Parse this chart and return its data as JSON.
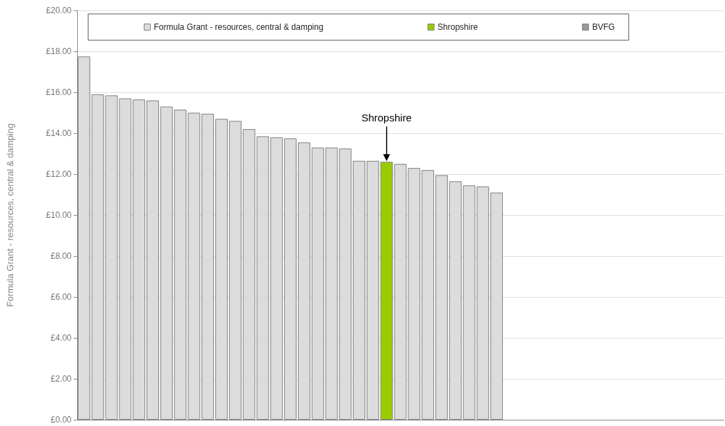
{
  "chart_data": {
    "type": "bar",
    "ylabel": "Formula Grant - resources, central & damping",
    "categories": [
      null,
      null,
      null,
      null,
      null,
      null,
      null,
      null,
      null,
      null,
      null,
      null,
      null,
      null,
      null,
      null,
      null,
      null,
      null,
      null,
      null,
      null,
      null,
      null,
      null,
      null,
      null,
      null,
      null,
      null,
      null,
      null,
      null,
      null,
      null,
      null,
      null,
      null,
      null,
      null,
      null,
      null,
      null,
      null,
      null,
      null,
      null
    ],
    "series": [
      {
        "name": "Formula Grant - resources, central & damping",
        "color": "#dcdcdc",
        "values": [
          17.75,
          15.9,
          15.85,
          15.7,
          15.65,
          15.6,
          15.3,
          15.15,
          15.0,
          14.95,
          14.7,
          14.6,
          14.2,
          13.85,
          13.8,
          13.75,
          13.55,
          13.3,
          13.3,
          13.25,
          12.65,
          12.65,
          null,
          12.5,
          12.3,
          12.2,
          11.95,
          11.65,
          11.45,
          11.4,
          11.1,
          null,
          null,
          null,
          null,
          null,
          null,
          null,
          null,
          null,
          null,
          null,
          null,
          null,
          null,
          null,
          null
        ]
      },
      {
        "name": "Shropshire",
        "color": "#99cc00",
        "values": [
          null,
          null,
          null,
          null,
          null,
          null,
          null,
          null,
          null,
          null,
          null,
          null,
          null,
          null,
          null,
          null,
          null,
          null,
          null,
          null,
          null,
          null,
          12.6,
          null,
          null,
          null,
          null,
          null,
          null,
          null,
          null,
          null,
          null,
          null,
          null,
          null,
          null,
          null,
          null,
          null,
          null,
          null,
          null,
          null,
          null,
          null,
          null
        ]
      },
      {
        "name": "BVFG",
        "color": "#999999",
        "values": [
          null,
          null,
          null,
          null,
          null,
          null,
          null,
          null,
          null,
          null,
          null,
          null,
          null,
          null,
          null,
          null,
          null,
          null,
          null,
          null,
          null,
          null,
          null,
          null,
          null,
          null,
          null,
          null,
          null,
          null,
          null,
          null,
          null,
          null,
          null,
          null,
          null,
          null,
          null,
          null,
          null,
          null,
          null,
          null,
          null,
          null,
          null
        ]
      }
    ],
    "ylim": [
      0,
      20
    ],
    "yticks": [
      {
        "value": 0,
        "label": "£0.00"
      },
      {
        "value": 2,
        "label": "£2.00"
      },
      {
        "value": 4,
        "label": "£4.00"
      },
      {
        "value": 6,
        "label": "£6.00"
      },
      {
        "value": 8,
        "label": "£8.00"
      },
      {
        "value": 10,
        "label": "£10.00"
      },
      {
        "value": 12,
        "label": "£12.00"
      },
      {
        "value": 14,
        "label": "£14.00"
      },
      {
        "value": 16,
        "label": "£16.00"
      },
      {
        "value": 18,
        "label": "£18.00"
      },
      {
        "value": 20,
        "label": "£20.00"
      }
    ],
    "annotations": [
      "Shropshire"
    ],
    "grid": "y",
    "legend": "top",
    "tick_labels": "y"
  }
}
